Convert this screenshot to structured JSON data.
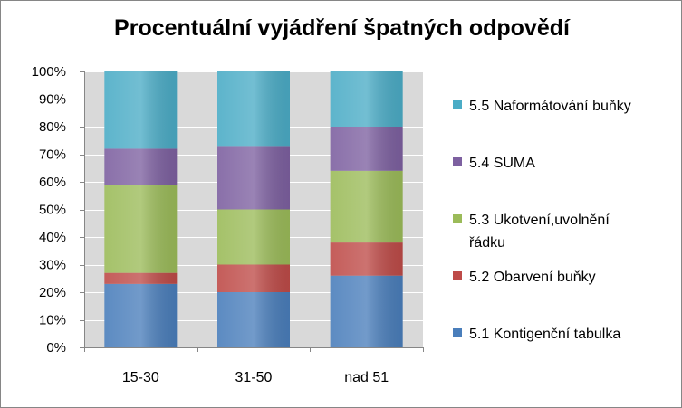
{
  "colors": {
    "plot_background": "#d9d9d9",
    "gridline": "#ffffff",
    "axis": "#868686"
  },
  "chart_data": {
    "type": "bar",
    "stacked": true,
    "percent": true,
    "title": "Procentuální vyjádření špatných odpovědí",
    "xlabel": "",
    "ylabel": "",
    "ylim": [
      0,
      100
    ],
    "y_ticks": [
      "0%",
      "10%",
      "20%",
      "30%",
      "40%",
      "50%",
      "60%",
      "70%",
      "80%",
      "90%",
      "100%"
    ],
    "grid": true,
    "legend_position": "right",
    "categories": [
      "15-30",
      "31-50",
      "nad 51"
    ],
    "series": [
      {
        "name": "5.1 Kontigenční tabulka",
        "color": "#4a7ebb",
        "values": [
          23,
          20,
          26
        ]
      },
      {
        "name": "5.2 Obarvení buňky",
        "color": "#be4b48",
        "values": [
          4,
          10,
          12
        ]
      },
      {
        "name": "5.3 Ukotvení,uvolnění řádku",
        "color": "#9bbb59",
        "values": [
          32,
          20,
          26
        ]
      },
      {
        "name": "5.4 SUMA",
        "color": "#7d60a0",
        "values": [
          13,
          23,
          16
        ]
      },
      {
        "name": "5.5 Naformátování buňky",
        "color": "#4bacc6",
        "values": [
          28,
          27,
          20
        ]
      }
    ],
    "legend_lines": [
      [
        "5.5 Naformátování buňky"
      ],
      [
        "5.4 SUMA"
      ],
      [
        "5.3 Ukotvení,uvolnění",
        "řádku"
      ],
      [
        "5.2 Obarvení buňky"
      ],
      [
        "5.1 Kontigenční tabulka"
      ]
    ]
  }
}
